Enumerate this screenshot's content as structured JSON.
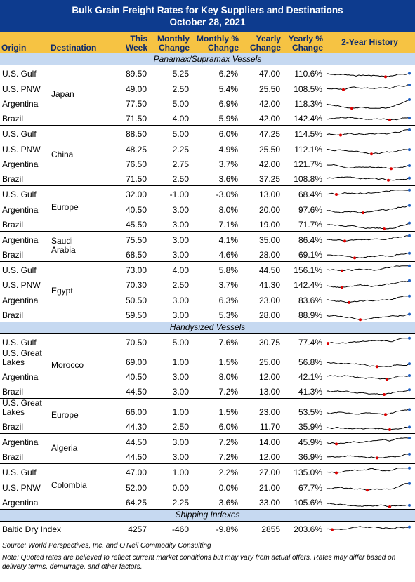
{
  "header": {
    "title": "Bulk Grain Freight Rates for Key Suppliers and Destinations",
    "date": "October 28, 2021"
  },
  "columns": [
    "Origin",
    "Destination",
    "This Week",
    "Monthly Change",
    "Monthly % Change",
    "Yearly Change",
    "Yearly % Change",
    "2-Year History"
  ],
  "sections": [
    {
      "title": "Panamax/Supramax Vessels",
      "groups": [
        {
          "destination": "Japan",
          "rows": [
            [
              "U.S. Gulf",
              "89.50",
              "5.25",
              "6.2%",
              "47.00",
              "110.6%"
            ],
            [
              "U.S. PNW",
              "49.00",
              "2.50",
              "5.4%",
              "25.50",
              "108.5%"
            ],
            [
              "Argentina",
              "77.50",
              "5.00",
              "6.9%",
              "42.00",
              "118.3%"
            ],
            [
              "Brazil",
              "71.50",
              "4.00",
              "5.9%",
              "42.00",
              "142.4%"
            ]
          ]
        },
        {
          "destination": "China",
          "rows": [
            [
              "U.S. Gulf",
              "88.50",
              "5.00",
              "6.0%",
              "47.25",
              "114.5%"
            ],
            [
              "U.S. PNW",
              "48.25",
              "2.25",
              "4.9%",
              "25.50",
              "112.1%"
            ],
            [
              "Argentina",
              "76.50",
              "2.75",
              "3.7%",
              "42.00",
              "121.7%"
            ],
            [
              "Brazil",
              "71.50",
              "2.50",
              "3.6%",
              "37.25",
              "108.8%"
            ]
          ]
        },
        {
          "destination": "Europe",
          "rows": [
            [
              "U.S. Gulf",
              "32.00",
              "-1.00",
              "-3.0%",
              "13.00",
              "68.4%"
            ],
            [
              "Argentina",
              "40.50",
              "3.00",
              "8.0%",
              "20.00",
              "97.6%"
            ],
            [
              "Brazil",
              "45.50",
              "3.00",
              "7.1%",
              "19.00",
              "71.7%"
            ]
          ]
        },
        {
          "destination": "Saudi Arabia",
          "rows": [
            [
              "Argentina",
              "75.50",
              "3.00",
              "4.1%",
              "35.00",
              "86.4%"
            ],
            [
              "Brazil",
              "68.50",
              "3.00",
              "4.6%",
              "28.00",
              "69.1%"
            ]
          ]
        },
        {
          "destination": "Egypt",
          "rows": [
            [
              "U.S. Gulf",
              "73.00",
              "4.00",
              "5.8%",
              "44.50",
              "156.1%"
            ],
            [
              "U.S. PNW",
              "70.30",
              "2.50",
              "3.7%",
              "41.30",
              "142.4%"
            ],
            [
              "Argentina",
              "50.50",
              "3.00",
              "6.3%",
              "23.00",
              "83.6%"
            ],
            [
              "Brazil",
              "59.50",
              "3.00",
              "5.3%",
              "28.00",
              "88.9%"
            ]
          ]
        }
      ]
    },
    {
      "title": "Handysized Vessels",
      "groups": [
        {
          "destination": "Morocco",
          "rows": [
            [
              "U.S. Gulf",
              "70.50",
              "5.00",
              "7.6%",
              "30.75",
              "77.4%"
            ],
            [
              "U.S. Great Lakes",
              "69.00",
              "1.00",
              "1.5%",
              "25.00",
              "56.8%"
            ],
            [
              "Argentina",
              "40.50",
              "3.00",
              "8.0%",
              "12.00",
              "42.1%"
            ],
            [
              "Brazil",
              "44.50",
              "3.00",
              "7.2%",
              "13.00",
              "41.3%"
            ]
          ]
        },
        {
          "destination": "Europe",
          "rows": [
            [
              "U.S. Great Lakes",
              "66.00",
              "1.00",
              "1.5%",
              "23.00",
              "53.5%"
            ],
            [
              "Brazil",
              "44.30",
              "2.50",
              "6.0%",
              "11.70",
              "35.9%"
            ]
          ]
        },
        {
          "destination": "Algeria",
          "rows": [
            [
              "Argentina",
              "44.50",
              "3.00",
              "7.2%",
              "14.00",
              "45.9%"
            ],
            [
              "Brazil",
              "44.50",
              "3.00",
              "7.2%",
              "12.00",
              "36.9%"
            ]
          ]
        },
        {
          "destination": "Colombia",
          "rows": [
            [
              "U.S. Gulf",
              "47.00",
              "1.00",
              "2.2%",
              "27.00",
              "135.0%"
            ],
            [
              "U.S. PNW",
              "52.00",
              "0.00",
              "0.0%",
              "21.00",
              "67.7%"
            ],
            [
              "Argentina",
              "64.25",
              "2.25",
              "3.6%",
              "33.00",
              "105.6%"
            ]
          ]
        }
      ]
    },
    {
      "title": "Shipping Indexes",
      "groups": [
        {
          "rows": [
            [
              "Baltic Dry Index",
              "4257",
              "-460",
              "-9.8%",
              "2855",
              "203.6%"
            ]
          ]
        }
      ]
    }
  ],
  "footer": {
    "source": "Source: World Perspectives, Inc. and O'Neil Commodity Consulting",
    "note": "Note: Quoted rates are believed to reflect current market conditions but may vary from actual offers. Rates may differ based on delivery terms, demurrage, and other factors."
  }
}
